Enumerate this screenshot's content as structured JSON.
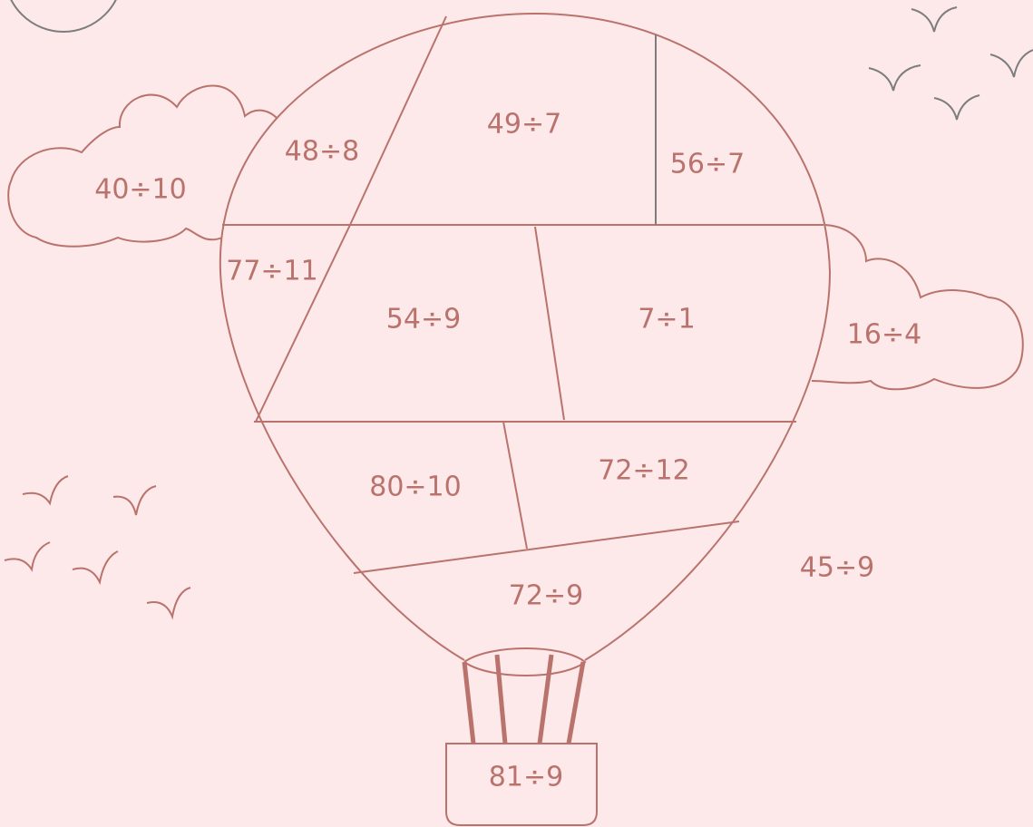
{
  "labels": [
    "48÷8",
    "49÷7",
    "56÷7",
    "40÷10",
    "77÷11",
    "54÷9",
    "7÷1",
    "16÷4",
    "80÷10",
    "72÷12",
    "45÷9",
    "72÷9",
    "81÷9"
  ]
}
